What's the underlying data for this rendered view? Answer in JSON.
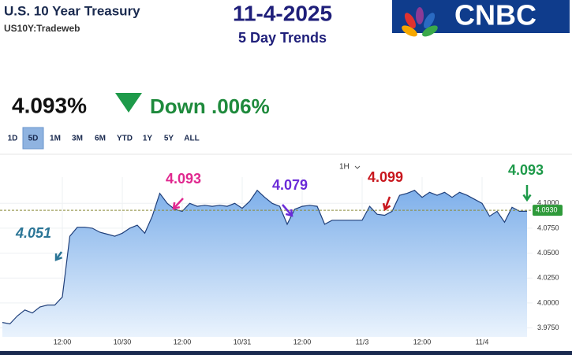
{
  "header": {
    "title": "U.S. 10 Year Treasury",
    "symbol": "US10Y:Tradeweb",
    "date": "11-4-2025",
    "subtitle": "5 Day Trends",
    "logo": "CNBC"
  },
  "quote": {
    "price": "4.093%",
    "change": "Down .006%"
  },
  "ranges": [
    "1D",
    "5D",
    "1M",
    "3M",
    "6M",
    "YTD",
    "1Y",
    "5Y",
    "ALL"
  ],
  "selected_range": "5D",
  "interval": "1H",
  "chart_data": {
    "type": "line",
    "categories": [
      null,
      null,
      null,
      null,
      null,
      null,
      null,
      null,
      "12:00",
      null,
      null,
      null,
      null,
      null,
      null,
      null,
      "10/30",
      null,
      null,
      null,
      null,
      null,
      null,
      null,
      "12:00",
      null,
      null,
      null,
      null,
      null,
      null,
      null,
      "10/31",
      null,
      null,
      null,
      null,
      null,
      null,
      null,
      "12:00",
      null,
      null,
      null,
      null,
      null,
      null,
      null,
      "11/3",
      null,
      null,
      null,
      null,
      null,
      null,
      null,
      "12:00",
      null,
      null,
      null,
      null,
      null,
      null,
      null,
      "11/4",
      null,
      null,
      null,
      null,
      null,
      null
    ],
    "series": [
      {
        "name": "US10Y",
        "color": "#1f3f7a",
        "values": [
          3.9805,
          3.979,
          3.987,
          3.993,
          3.99,
          3.996,
          3.998,
          3.998,
          4.006,
          4.067,
          4.076,
          4.076,
          4.075,
          4.071,
          4.069,
          4.067,
          4.07,
          4.075,
          4.078,
          4.07,
          4.087,
          4.11,
          4.1,
          4.094,
          4.092,
          4.1,
          4.097,
          4.098,
          4.097,
          4.098,
          4.097,
          4.1,
          4.095,
          4.102,
          4.113,
          4.106,
          4.1,
          4.097,
          4.079,
          4.094,
          4.097,
          4.098,
          4.097,
          4.079,
          4.083,
          4.083,
          4.083,
          4.083,
          4.083,
          4.097,
          4.089,
          4.088,
          4.092,
          4.108,
          4.11,
          4.113,
          4.106,
          4.111,
          4.108,
          4.111,
          4.106,
          4.111,
          4.108,
          4.104,
          4.1,
          4.087,
          4.092,
          4.081,
          4.096,
          4.092,
          4.092
        ]
      }
    ],
    "ylim": [
      3.966,
      4.146
    ],
    "yticks": [
      {
        "value": 3.975,
        "label": "3.9750"
      },
      {
        "value": 4.0,
        "label": "4.0000"
      },
      {
        "value": 4.025,
        "label": "4.0250"
      },
      {
        "value": 4.05,
        "label": "4.0500"
      },
      {
        "value": 4.075,
        "label": "4.0750"
      },
      {
        "value": 4.1,
        "label": "4.1000"
      }
    ],
    "last_price": {
      "value": 4.093,
      "label": "4.0930"
    },
    "annotations": [
      {
        "text": "4.051",
        "color": "#2b7596"
      },
      {
        "text": "4.093",
        "color": "#e0288f"
      },
      {
        "text": "4.079",
        "color": "#6a2bd8"
      },
      {
        "text": "4.099",
        "color": "#c8161d"
      },
      {
        "text": "4.093",
        "color": "#1e9a4a"
      }
    ]
  }
}
